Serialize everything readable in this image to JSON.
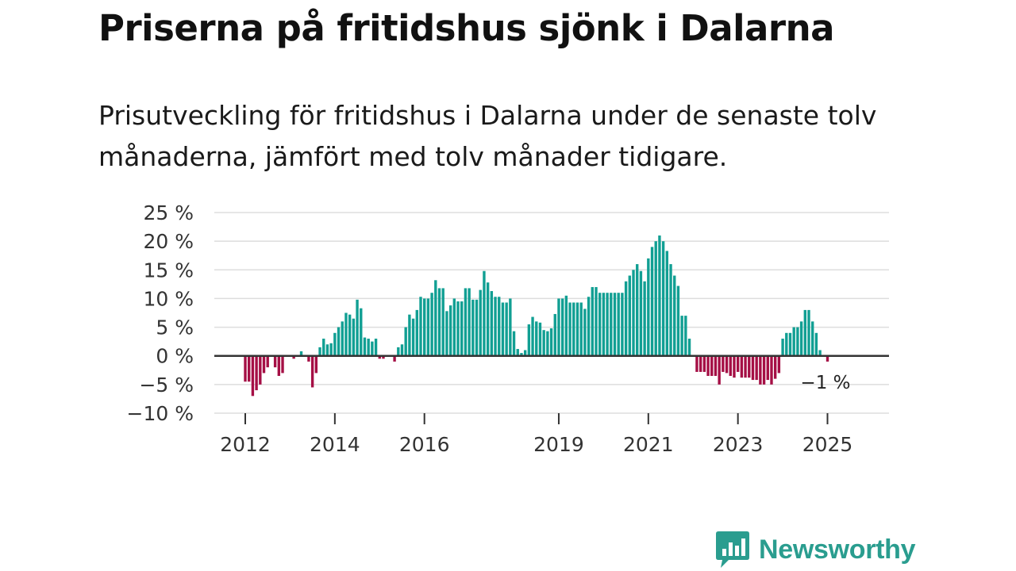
{
  "title": "Priserna på fritidshus sjönk i Dalarna",
  "subtitle": "Prisutveckling för fritidshus i Dalarna under de senaste tolv månaderna, jämfört med tolv månader tidigare.",
  "logo": {
    "text": "Newsworthy",
    "icon": "bar-chart-speech-bubble-icon"
  },
  "colors": {
    "positive": "#119f93",
    "negative": "#a50f45",
    "grid": "#dddddd",
    "zero_line": "#333333",
    "logo": "#2a9d8f"
  },
  "chart_data": {
    "type": "bar",
    "ylabel": "",
    "xlabel": "",
    "ylim": [
      -10,
      25
    ],
    "yticks": [
      25,
      20,
      15,
      10,
      5,
      0,
      -5,
      -10
    ],
    "ytick_labels": [
      "25 %",
      "20 %",
      "15 %",
      "10 %",
      "5 %",
      "0 %",
      "−5 %",
      "−10 %"
    ],
    "xticks": [
      {
        "label": "2012",
        "month": "2012-01"
      },
      {
        "label": "2014",
        "month": "2014-01"
      },
      {
        "label": "2016",
        "month": "2016-01"
      },
      {
        "label": "2019",
        "month": "2019-01"
      },
      {
        "label": "2021",
        "month": "2021-01"
      },
      {
        "label": "2023",
        "month": "2023-01"
      },
      {
        "label": "2025",
        "month": "2025-01"
      }
    ],
    "last_value_label": "−1 %",
    "start_month": "2012-01",
    "grid": true,
    "values": [
      -4.5,
      -4.5,
      -7,
      -6,
      -5,
      -3,
      -2,
      0,
      -2,
      -3.5,
      -3,
      0,
      0,
      -0.5,
      0,
      0.8,
      0,
      -1,
      -5.5,
      -3,
      1.5,
      3,
      2,
      2.2,
      4,
      5,
      6,
      7.5,
      7.2,
      6.5,
      9.8,
      8.3,
      3.2,
      3,
      2.5,
      3,
      -0.5,
      -0.5,
      0,
      0,
      -1,
      1.5,
      2,
      5,
      7.2,
      6.5,
      8,
      10.3,
      10,
      10,
      11,
      13.2,
      11.8,
      11.8,
      7.8,
      8.8,
      10,
      9.5,
      9.5,
      11.8,
      11.8,
      9.8,
      9.8,
      11.5,
      14.8,
      12.8,
      11.3,
      10.3,
      10.3,
      9.3,
      9.3,
      10,
      4.3,
      1.2,
      0.5,
      1,
      5.5,
      6.8,
      6,
      5.8,
      4.5,
      4.3,
      4.8,
      7.3,
      10,
      10,
      10.5,
      9.3,
      9.3,
      9.3,
      9.3,
      8.2,
      10.3,
      12,
      12,
      11,
      11,
      11,
      11,
      11,
      11,
      11,
      13,
      14,
      15,
      16,
      14.8,
      13,
      17,
      19,
      20,
      21,
      20,
      18.3,
      16,
      14,
      12.2,
      7,
      7,
      3,
      0,
      -2.8,
      -2.8,
      -2.8,
      -3.5,
      -3.5,
      -3.5,
      -5,
      -2.8,
      -3,
      -3.5,
      -3.8,
      -2.8,
      -3.8,
      -3.8,
      -3.8,
      -4.2,
      -4.2,
      -5,
      -5,
      -4.2,
      -5,
      -4,
      -3,
      3,
      4,
      4,
      5,
      5,
      6,
      8,
      8,
      6,
      4,
      1,
      0,
      -1
    ]
  }
}
